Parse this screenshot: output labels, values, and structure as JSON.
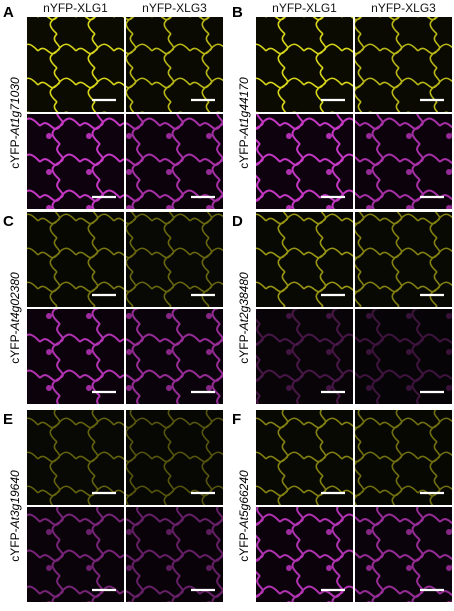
{
  "column_labels": [
    "nYFP-XLG1",
    "nYFP-XLG3"
  ],
  "panels": [
    {
      "letter": "A",
      "row_label_prefix": "cYFP-",
      "row_label_gene": "At1g71030"
    },
    {
      "letter": "B",
      "row_label_prefix": "cYFP-",
      "row_label_gene": "At1g44170"
    },
    {
      "letter": "C",
      "row_label_prefix": "cYFP-",
      "row_label_gene": "At4g02380"
    },
    {
      "letter": "D",
      "row_label_prefix": "cYFP-",
      "row_label_gene": "At2g38480"
    },
    {
      "letter": "E",
      "row_label_prefix": "cYFP-",
      "row_label_gene": "At3g19640"
    },
    {
      "letter": "F",
      "row_label_prefix": "cYFP-",
      "row_label_gene": "At5g66240"
    }
  ]
}
